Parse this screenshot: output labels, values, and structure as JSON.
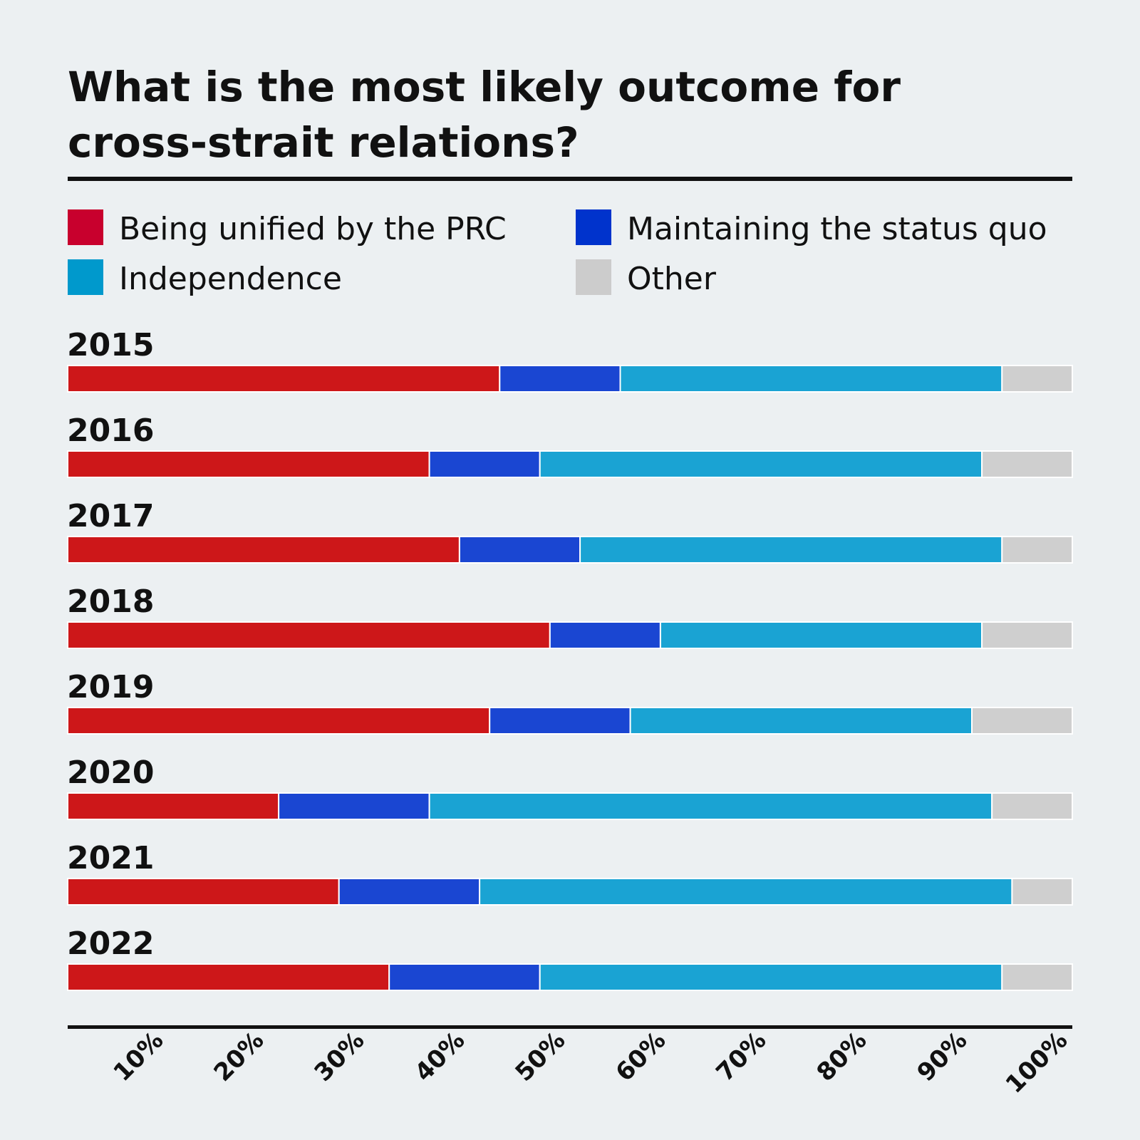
{
  "chart_data": {
    "type": "bar",
    "orientation": "horizontal",
    "stacked": true,
    "title_lines": [
      "What is the most likely outcome for",
      "cross-strait relations?"
    ],
    "categories": [
      "2015",
      "2016",
      "2017",
      "2018",
      "2019",
      "2020",
      "2021",
      "2022"
    ],
    "series": [
      {
        "name": "Being unified by the PRC",
        "color": "#cd1719",
        "legend_color": "#c8002d",
        "values": [
          43,
          36,
          39,
          48,
          42,
          21,
          27,
          32
        ]
      },
      {
        "name": "Maintaining the status quo",
        "color": "#1a46d2",
        "legend_color": "#0033cc",
        "values": [
          12,
          11,
          12,
          11,
          14,
          15,
          14,
          15
        ]
      },
      {
        "name": "Independence",
        "color": "#1aa3d3",
        "legend_color": "#0099cc",
        "values": [
          38,
          44,
          42,
          32,
          34,
          56,
          53,
          46
        ]
      },
      {
        "name": "Other",
        "color": "#cfcfcf",
        "legend_color": "#cccccc",
        "values": [
          7,
          9,
          7,
          9,
          10,
          8,
          6,
          7
        ]
      }
    ],
    "legend_placement": "top",
    "xlim": [
      0,
      100
    ],
    "ticks": [
      10,
      20,
      30,
      40,
      50,
      60,
      70,
      80,
      90,
      100
    ],
    "tick_labels": [
      "10%",
      "20%",
      "30%",
      "40%",
      "50%",
      "60%",
      "70%",
      "80%",
      "90%",
      "100%"
    ],
    "grid": false
  }
}
